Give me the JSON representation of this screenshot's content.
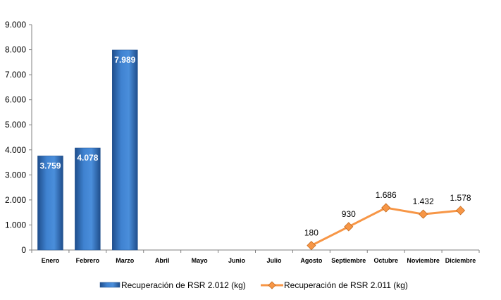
{
  "chart_data": {
    "type": "bar",
    "categories": [
      "Enero",
      "Febrero",
      "Marzo",
      "Abril",
      "Mayo",
      "Junio",
      "Julio",
      "Agosto",
      "Septiembre",
      "Octubre",
      "Noviembre",
      "Diciembre"
    ],
    "ylim": [
      0,
      9000
    ],
    "yticks": [
      0,
      1000,
      2000,
      3000,
      4000,
      5000,
      6000,
      7000,
      8000,
      9000
    ],
    "ytick_labels": [
      "0",
      "1.000",
      "2.000",
      "3.000",
      "4.000",
      "5.000",
      "6.000",
      "7.000",
      "8.000",
      "9.000"
    ],
    "grid": false,
    "legend_position": "bottom",
    "series": [
      {
        "name": "Recuperación de RSR 2.012 (kg)",
        "kind": "bar",
        "color": "#2E6DB4",
        "values": [
          3759,
          4078,
          7989,
          null,
          null,
          null,
          null,
          null,
          null,
          null,
          null,
          null
        ],
        "labels": [
          "3.759",
          "4.078",
          "7.989",
          null,
          null,
          null,
          null,
          null,
          null,
          null,
          null,
          null
        ]
      },
      {
        "name": "Recuperación de RSR 2.011 (kg)",
        "kind": "line",
        "color": "#F79646",
        "values": [
          null,
          null,
          null,
          null,
          null,
          null,
          null,
          180,
          930,
          1686,
          1432,
          1578
        ],
        "labels": [
          null,
          null,
          null,
          null,
          null,
          null,
          null,
          "180",
          "930",
          "1.686",
          "1.432",
          "1.578"
        ]
      }
    ]
  }
}
